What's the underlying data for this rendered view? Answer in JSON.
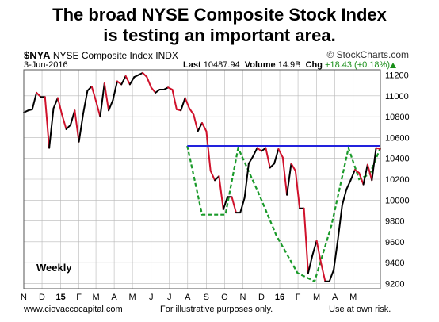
{
  "headline": {
    "line1": "The broad NYSE Composite Stock Index",
    "line2": "is testing an important area."
  },
  "header": {
    "symbol": "$NYA",
    "name": "NYSE Composite Index",
    "exchange": "INDX",
    "brand": "© StockCharts.com",
    "date": "3-Jun-2016",
    "last_label": "Last",
    "last_value": "10487.94",
    "volume_label": "Volume",
    "volume_value": "14.9B",
    "chg_label": "Chg",
    "chg_value": "+18.43 (+0.18%)",
    "chg_color": "#1a8f1a"
  },
  "chart_label": "Weekly",
  "footer": {
    "left": "www.ciovaccocapital.com",
    "center": "For illustrative purposes only.",
    "right": "Use at own risk."
  },
  "colors": {
    "up": "#000000",
    "down": "#d0112b",
    "resistance": "#2222dd",
    "pattern": "#1a9a2a",
    "grid": "#b8b8b8"
  },
  "chart_data": {
    "type": "line",
    "title": "The broad NYSE Composite Stock Index is testing an important area.",
    "ylim": [
      9150,
      11250
    ],
    "yticks": [
      9200,
      9400,
      9600,
      9800,
      10000,
      10200,
      10400,
      10600,
      10800,
      11000,
      11200
    ],
    "xlim": [
      0,
      84
    ],
    "xticks": [
      {
        "x": 0,
        "label": "N"
      },
      {
        "x": 4.3,
        "label": "D"
      },
      {
        "x": 8.7,
        "label": "15"
      },
      {
        "x": 13,
        "label": "F"
      },
      {
        "x": 17,
        "label": "M"
      },
      {
        "x": 21.3,
        "label": "A"
      },
      {
        "x": 25.6,
        "label": "M"
      },
      {
        "x": 30,
        "label": "J"
      },
      {
        "x": 34.3,
        "label": "J"
      },
      {
        "x": 38.6,
        "label": "A"
      },
      {
        "x": 43,
        "label": "S"
      },
      {
        "x": 47.3,
        "label": "O"
      },
      {
        "x": 51.6,
        "label": "N"
      },
      {
        "x": 56,
        "label": "D"
      },
      {
        "x": 60.3,
        "label": "16"
      },
      {
        "x": 64.6,
        "label": "F"
      },
      {
        "x": 69,
        "label": "M"
      },
      {
        "x": 73.3,
        "label": "A"
      },
      {
        "x": 77.6,
        "label": "M"
      }
    ],
    "grid": true,
    "series": [
      {
        "values": [
          10840,
          10860,
          10870,
          11030,
          10990,
          10990,
          10500,
          10880,
          10980,
          10820,
          10680,
          10720,
          10860,
          10560,
          10830,
          11050,
          11090,
          10950,
          10800,
          11120,
          10860,
          10960,
          11140,
          11110,
          11190,
          11110,
          11180,
          11200,
          11220,
          11180,
          11080,
          11030,
          11060,
          11060,
          11080,
          11060,
          10870,
          10860,
          10980,
          10880,
          10820,
          10660,
          10740,
          10660,
          10280,
          10190,
          10230,
          9910,
          10030,
          10030,
          9880,
          9880,
          10020,
          10350,
          10420,
          10500,
          10470,
          10500,
          10310,
          10350,
          10490,
          10410,
          10050,
          10350,
          10280,
          9920,
          9920,
          9300,
          9470,
          9610,
          9400,
          9220,
          9220,
          9330,
          9620,
          9950,
          10100,
          10190,
          10290,
          10260,
          10150,
          10340,
          10190,
          10500,
          10490
        ]
      }
    ],
    "resistance_line": {
      "x": [
        38.5,
        84
      ],
      "y": [
        10520,
        10520
      ]
    },
    "pattern_line": {
      "x": [
        38.5,
        42,
        44.5,
        47.5,
        50.5,
        55.5,
        59.5,
        64.5,
        68.5,
        72.5,
        76.5,
        79,
        81.5,
        84
      ],
      "y": [
        10520,
        9860,
        9860,
        9860,
        10500,
        10050,
        9660,
        9300,
        9220,
        9760,
        10500,
        10200,
        10250,
        10500
      ]
    }
  }
}
